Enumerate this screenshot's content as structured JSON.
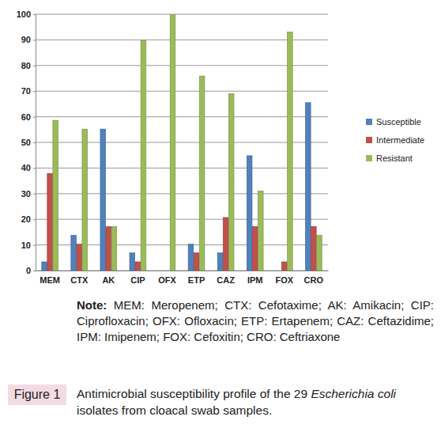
{
  "chart_data": {
    "type": "bar",
    "categories": [
      "MEM",
      "CTX",
      "AK",
      "CIP",
      "OFX",
      "ETP",
      "CAZ",
      "IPM",
      "FOX",
      "CRO"
    ],
    "series": [
      {
        "name": "Susceptible",
        "color": "#4f81bd",
        "values": [
          3.4,
          13.8,
          55.2,
          6.9,
          0,
          10.3,
          6.9,
          44.8,
          0,
          65.5
        ]
      },
      {
        "name": "Intermediate",
        "color": "#c0504d",
        "values": [
          37.9,
          10.3,
          17.2,
          3.4,
          0,
          6.9,
          20.7,
          17.2,
          3.4,
          17.2
        ]
      },
      {
        "name": "Resistant",
        "color": "#9bbb59",
        "values": [
          58.6,
          55.2,
          17.2,
          89.7,
          100,
          75.9,
          69,
          31,
          93.1,
          13.8
        ]
      }
    ],
    "ylim": [
      0,
      100
    ],
    "yticks": [
      0,
      10,
      20,
      30,
      40,
      50,
      60,
      70,
      80,
      90,
      100
    ],
    "grid": true,
    "legend": "right",
    "note_label": "Note:",
    "note": "MEM: Meropenem; CTX: Cefotaxime; AK: Amikacin; CIP: Ciprofloxacin; OFX: Ofloxacin; ETP: Ertapenem; CAZ: Ceftazidime; IPM: Imipenem; FOX: Cefoxitin; CRO: Ceftriaxone",
    "figure_label": "Figure 1",
    "caption": [
      "Antimicrobial susceptibility profile of the 29 ",
      "Escherichia coli",
      " isolates from cloacal swab samples."
    ]
  }
}
